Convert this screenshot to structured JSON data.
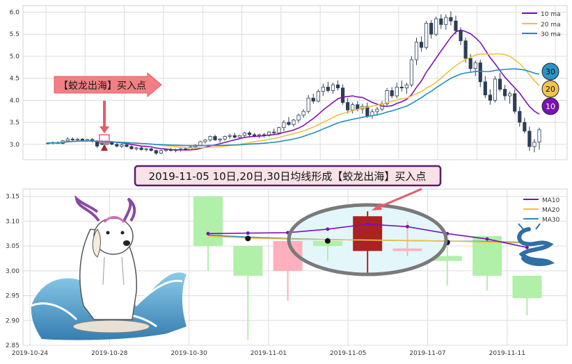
{
  "chart_data": [
    {
      "type": "candlestick",
      "panel": "overview",
      "ylim": [
        2.65,
        6.15
      ],
      "y_ticks": [
        "3.0",
        "3.5",
        "4.0",
        "4.5",
        "5.0",
        "5.5",
        "6.0"
      ],
      "x_ticks": [
        "",
        "",
        "",
        "",
        "",
        "",
        "",
        "",
        "",
        "",
        "",
        "",
        "",
        ""
      ],
      "grid": true,
      "legend": {
        "position": "top-right",
        "entries": [
          {
            "label": "10 ma",
            "color": "#7b12b5"
          },
          {
            "label": "20 ma",
            "color": "#f0c040"
          },
          {
            "label": "30 ma",
            "color": "#1f8fc0"
          }
        ]
      },
      "ma_badges": [
        "30",
        "20",
        "10"
      ],
      "annotation": "【蛟龙出海】买入点",
      "candles_ohlc": [
        [
          3.02,
          3.05,
          3.0,
          3.03
        ],
        [
          3.03,
          3.06,
          3.0,
          3.04
        ],
        [
          3.04,
          3.07,
          3.01,
          3.02
        ],
        [
          3.02,
          3.1,
          3.0,
          3.08
        ],
        [
          3.08,
          3.16,
          3.05,
          3.12
        ],
        [
          3.12,
          3.16,
          3.08,
          3.1
        ],
        [
          3.1,
          3.14,
          3.06,
          3.12
        ],
        [
          3.12,
          3.14,
          3.08,
          3.09
        ],
        [
          3.09,
          3.12,
          3.06,
          3.11
        ],
        [
          3.11,
          3.14,
          3.04,
          3.07
        ],
        [
          3.07,
          3.1,
          2.92,
          2.96
        ],
        [
          3.02,
          3.09,
          2.98,
          3.0
        ],
        [
          3.0,
          3.07,
          2.98,
          3.05
        ],
        [
          3.05,
          3.06,
          2.98,
          3.0
        ],
        [
          3.0,
          3.03,
          2.93,
          2.96
        ],
        [
          2.96,
          3.02,
          2.92,
          2.99
        ],
        [
          2.99,
          3.0,
          2.93,
          2.95
        ],
        [
          2.95,
          2.98,
          2.88,
          2.9
        ],
        [
          2.9,
          2.94,
          2.86,
          2.92
        ],
        [
          2.92,
          2.95,
          2.86,
          2.88
        ],
        [
          2.88,
          2.92,
          2.84,
          2.9
        ],
        [
          2.9,
          2.92,
          2.84,
          2.86
        ],
        [
          2.86,
          2.88,
          2.76,
          2.8
        ],
        [
          2.8,
          2.88,
          2.78,
          2.86
        ],
        [
          2.86,
          2.9,
          2.83,
          2.88
        ],
        [
          2.88,
          2.92,
          2.84,
          2.86
        ],
        [
          2.86,
          2.9,
          2.82,
          2.88
        ],
        [
          2.88,
          2.92,
          2.84,
          2.9
        ],
        [
          2.9,
          2.94,
          2.86,
          2.88
        ],
        [
          2.88,
          2.96,
          2.86,
          2.94
        ],
        [
          2.94,
          3.0,
          2.9,
          2.98
        ],
        [
          2.98,
          3.08,
          2.96,
          3.06
        ],
        [
          3.06,
          3.12,
          3.02,
          3.1
        ],
        [
          3.1,
          3.2,
          3.06,
          3.18
        ],
        [
          3.18,
          3.22,
          3.08,
          3.1
        ],
        [
          3.1,
          3.14,
          3.04,
          3.12
        ],
        [
          3.12,
          3.2,
          3.08,
          3.18
        ],
        [
          3.18,
          3.24,
          3.12,
          3.2
        ],
        [
          3.2,
          3.26,
          3.14,
          3.16
        ],
        [
          3.16,
          3.22,
          3.12,
          3.2
        ],
        [
          3.2,
          3.28,
          3.16,
          3.26
        ],
        [
          3.26,
          3.3,
          3.18,
          3.22
        ],
        [
          3.22,
          3.26,
          3.16,
          3.2
        ],
        [
          3.2,
          3.24,
          3.14,
          3.22
        ],
        [
          3.22,
          3.26,
          3.16,
          3.2
        ],
        [
          3.2,
          3.3,
          3.18,
          3.28
        ],
        [
          3.28,
          3.36,
          3.22,
          3.26
        ],
        [
          3.26,
          3.4,
          3.24,
          3.38
        ],
        [
          3.38,
          3.55,
          3.3,
          3.5
        ],
        [
          3.5,
          3.62,
          3.42,
          3.45
        ],
        [
          3.45,
          3.58,
          3.4,
          3.55
        ],
        [
          3.55,
          3.7,
          3.5,
          3.66
        ],
        [
          3.66,
          3.8,
          3.6,
          3.75
        ],
        [
          3.75,
          4.12,
          3.7,
          4.05
        ],
        [
          4.05,
          4.15,
          3.92,
          3.98
        ],
        [
          3.98,
          4.25,
          3.95,
          4.2
        ],
        [
          4.2,
          4.38,
          4.1,
          4.3
        ],
        [
          4.3,
          4.42,
          4.18,
          4.22
        ],
        [
          4.22,
          4.4,
          4.15,
          4.35
        ],
        [
          4.35,
          4.45,
          4.22,
          4.28
        ],
        [
          4.28,
          4.36,
          3.9,
          3.95
        ],
        [
          3.95,
          4.05,
          3.7,
          3.78
        ],
        [
          3.78,
          3.95,
          3.7,
          3.9
        ],
        [
          3.9,
          3.98,
          3.75,
          3.8
        ],
        [
          3.8,
          3.92,
          3.7,
          3.86
        ],
        [
          3.86,
          3.95,
          3.6,
          3.65
        ],
        [
          3.65,
          3.8,
          3.58,
          3.74
        ],
        [
          3.74,
          3.85,
          3.65,
          3.8
        ],
        [
          3.8,
          3.98,
          3.75,
          3.92
        ],
        [
          3.92,
          4.28,
          3.88,
          4.22
        ],
        [
          4.22,
          4.3,
          4.05,
          4.1
        ],
        [
          4.1,
          4.4,
          4.05,
          4.3
        ],
        [
          4.3,
          4.45,
          4.2,
          4.28
        ],
        [
          4.28,
          4.4,
          4.15,
          4.35
        ],
        [
          4.35,
          5.0,
          4.3,
          4.92
        ],
        [
          4.92,
          5.42,
          4.8,
          5.32
        ],
        [
          5.32,
          5.45,
          5.1,
          5.2
        ],
        [
          5.2,
          5.8,
          5.15,
          5.75
        ],
        [
          5.75,
          5.82,
          5.4,
          5.5
        ],
        [
          5.5,
          5.9,
          5.45,
          5.85
        ],
        [
          5.85,
          5.95,
          5.62,
          5.72
        ],
        [
          5.72,
          5.95,
          5.6,
          5.88
        ],
        [
          5.88,
          6.02,
          5.7,
          5.8
        ],
        [
          5.8,
          5.92,
          5.5,
          5.58
        ],
        [
          5.58,
          5.66,
          5.25,
          5.35
        ],
        [
          5.35,
          5.42,
          4.85,
          4.95
        ],
        [
          4.95,
          5.05,
          4.65,
          4.72
        ],
        [
          4.72,
          4.9,
          4.55,
          4.85
        ],
        [
          4.85,
          4.92,
          4.3,
          4.42
        ],
        [
          4.42,
          4.55,
          4.05,
          4.12
        ],
        [
          4.12,
          4.25,
          3.9,
          4.0
        ],
        [
          4.0,
          4.55,
          3.95,
          4.48
        ],
        [
          4.48,
          4.62,
          4.2,
          4.25
        ],
        [
          4.25,
          4.35,
          4.0,
          4.1
        ],
        [
          4.1,
          4.2,
          3.92,
          4.15
        ],
        [
          4.15,
          4.25,
          3.7,
          3.75
        ],
        [
          3.75,
          3.85,
          3.4,
          3.5
        ],
        [
          3.5,
          3.6,
          3.25,
          3.3
        ],
        [
          3.3,
          3.4,
          2.85,
          2.95
        ],
        [
          2.95,
          3.12,
          2.82,
          3.05
        ],
        [
          3.05,
          3.38,
          2.88,
          3.33
        ]
      ]
    },
    {
      "type": "candlestick",
      "panel": "detail",
      "ylim": [
        2.85,
        3.165
      ],
      "x": [
        "2019-10-24",
        "2019-10-28",
        "2019-10-30",
        "2019-11-01",
        "2019-11-05",
        "2019-11-07",
        "2019-11-11"
      ],
      "y_ticks": [
        "2.85",
        "2.90",
        "2.95",
        "3.00",
        "3.05",
        "3.10",
        "3.15"
      ],
      "grid": true,
      "legend": {
        "position": "top-right",
        "entries": [
          {
            "label": "MA10",
            "color": "#7b12b5"
          },
          {
            "label": "MA20",
            "color": "#f0c040"
          },
          {
            "label": "MA30",
            "color": "#1f8fc0"
          }
        ]
      },
      "annotation": "2019-11-05 10日,20日,30日均线形成【蛟龙出海】买入点",
      "candles": [
        {
          "open": 3.05,
          "high": 3.15,
          "low": 3.0,
          "close": 3.15,
          "color": "#b0f0a8"
        },
        {
          "open": 3.05,
          "high": 3.05,
          "low": 2.86,
          "close": 2.99,
          "color": "#b0f0a8"
        },
        {
          "open": 3.0,
          "high": 3.06,
          "low": 2.94,
          "close": 3.06,
          "color": "#ffb0bc"
        },
        {
          "open": 3.06,
          "high": 3.07,
          "low": 3.02,
          "close": 3.05,
          "color": "#b0f0a8"
        },
        {
          "open": 3.04,
          "high": 3.12,
          "low": 2.99,
          "close": 3.11,
          "color": "#aa2222"
        },
        {
          "open": 3.04,
          "high": 3.1,
          "low": 3.03,
          "close": 3.045,
          "color": "#ffb0bc"
        },
        {
          "open": 3.03,
          "high": 3.05,
          "low": 2.97,
          "close": 3.02,
          "color": "#b0f0a8"
        },
        {
          "open": 3.07,
          "high": 3.07,
          "low": 2.96,
          "close": 2.99,
          "color": "#b0f0a8"
        },
        {
          "open": 2.99,
          "high": 2.99,
          "low": 2.91,
          "close": 2.945,
          "color": "#b0f0a8"
        }
      ],
      "ma10": [
        3.075,
        3.076,
        3.077,
        3.084,
        3.094,
        3.089,
        3.075,
        3.064,
        3.047
      ],
      "ma20": [
        3.07,
        3.066,
        3.064,
        3.063,
        3.062,
        3.061,
        3.06,
        3.058,
        3.056
      ],
      "ma30": [
        3.072,
        3.068,
        3.065,
        3.063,
        3.062,
        3.061,
        3.06,
        3.059,
        3.057
      ]
    }
  ],
  "colors": {
    "ma10": "#7b12b5",
    "ma20": "#f0c040",
    "ma30": "#1f8fc0",
    "up_candle": "#ffffff",
    "down_candle": "#2d3e55",
    "grid": "#dcdcdc"
  }
}
